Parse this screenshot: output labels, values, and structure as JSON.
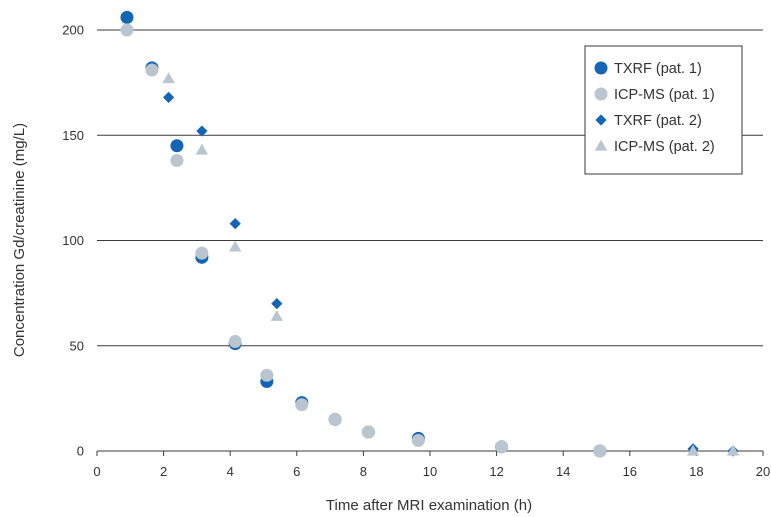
{
  "chart_data": {
    "type": "scatter",
    "title": "",
    "xlabel": "Time after MRI examination (h)",
    "ylabel": "Concentration Gd/creatinine (mg/L)",
    "xlim": [
      0,
      20
    ],
    "ylim": [
      0,
      200
    ],
    "x_ticks": [
      0,
      2,
      4,
      6,
      8,
      10,
      12,
      14,
      16,
      18,
      20
    ],
    "y_ticks": [
      0,
      50,
      100,
      150,
      200
    ],
    "grid": "horizontal",
    "legend_position": "top-right",
    "series": [
      {
        "name": "TXRF (pat. 1)",
        "marker": "circle",
        "color": "#1565b5",
        "x": [
          0.9,
          1.65,
          2.4,
          3.15,
          4.15,
          5.1,
          6.15,
          7.15,
          8.15,
          9.65,
          12.15,
          15.1
        ],
        "y": [
          206,
          182,
          145,
          92,
          51,
          33,
          23,
          15,
          9,
          6,
          2,
          0
        ]
      },
      {
        "name": "ICP-MS (pat. 1)",
        "marker": "circle",
        "color": "#b9c6d0",
        "x": [
          0.9,
          1.65,
          2.4,
          3.15,
          4.15,
          5.1,
          6.15,
          7.15,
          8.15,
          9.65,
          12.15,
          15.1
        ],
        "y": [
          200,
          181,
          138,
          94,
          52,
          36,
          22,
          15,
          9,
          5,
          2,
          0
        ]
      },
      {
        "name": "TXRF (pat. 2)",
        "marker": "diamond",
        "color": "#1565b5",
        "x": [
          2.15,
          3.15,
          4.15,
          5.4,
          17.9,
          19.1
        ],
        "y": [
          168,
          152,
          108,
          70,
          1,
          0
        ]
      },
      {
        "name": "ICP-MS (pat. 2)",
        "marker": "triangle",
        "color": "#b9c6d0",
        "x": [
          2.15,
          3.15,
          4.15,
          5.4,
          17.9,
          19.1
        ],
        "y": [
          177,
          143,
          97,
          64,
          0,
          0
        ]
      }
    ]
  }
}
